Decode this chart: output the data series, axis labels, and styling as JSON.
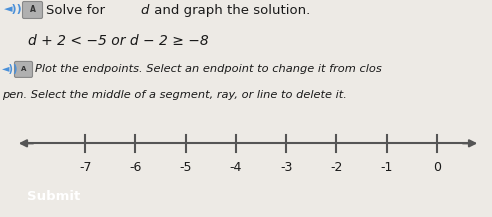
{
  "equation": "d + 2 < -5 or d - 2 >= -8",
  "instruction1": "Plot the endpoints. Select an endpoint to change it from clos",
  "instruction2": "pen. Select the middle of a segment, ray, or line to delete it.",
  "xmin": -8.5,
  "xmax": 0.9,
  "tick_positions": [
    -7,
    -6,
    -5,
    -4,
    -3,
    -2,
    -1,
    0
  ],
  "background_color": "#edeae5",
  "line_color": "#555555",
  "text_color": "#1a1a1a",
  "icon_color": "#4a90d9",
  "submit_bg": "#3db535",
  "submit_text_color": "#ffffff"
}
